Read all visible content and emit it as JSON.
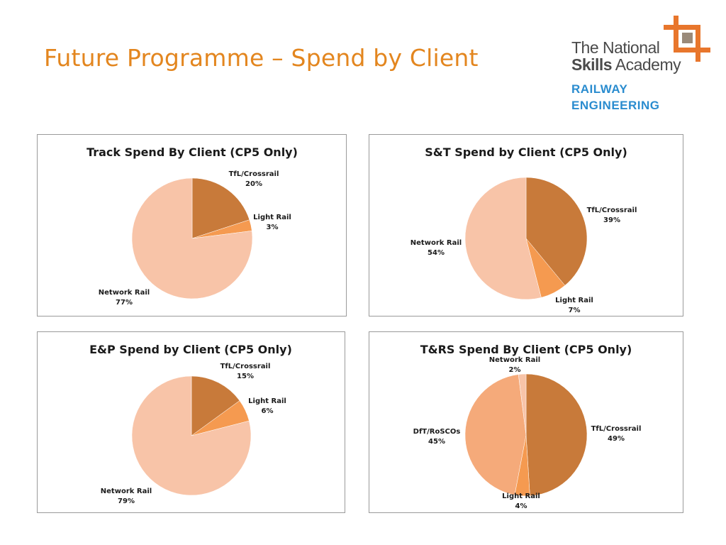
{
  "slide": {
    "title": "Future Programme – Spend by Client"
  },
  "logo": {
    "line1": "The National",
    "line2a": "Skills",
    "line2b": " Academy",
    "line3": "RAILWAY",
    "line4": "ENGINEERING",
    "colors": {
      "mark": "#e8762c",
      "inner": "#9a8a7a",
      "text": "#4a4a4a",
      "blue": "#2a8ccf"
    }
  },
  "colors": {
    "title": "#e3861f"
  },
  "chart_data": [
    {
      "type": "pie",
      "title": "Track Spend By Client (CP5 Only)",
      "categories": [
        "TfL/Crossrail",
        "Light Rail",
        "Network Rail"
      ],
      "values": [
        20,
        3,
        77
      ],
      "labels": [
        "20%",
        "3%",
        "77%"
      ],
      "colors": [
        "#c87a3a",
        "#f59a50",
        "#f8c4a8"
      ],
      "start_angle": 0
    },
    {
      "type": "pie",
      "title": "S&T Spend by Client (CP5 Only)",
      "categories": [
        "TfL/Crossrail",
        "Light Rail",
        "Network Rail"
      ],
      "values": [
        39,
        7,
        54
      ],
      "labels": [
        "39%",
        "7%",
        "54%"
      ],
      "colors": [
        "#c87a3a",
        "#f59a50",
        "#f8c4a8"
      ],
      "start_angle": 0
    },
    {
      "type": "pie",
      "title": "E&P Spend by Client (CP5 Only)",
      "categories": [
        "TfL/Crossrail",
        "Light Rail",
        "Network Rail"
      ],
      "values": [
        15,
        6,
        79
      ],
      "labels": [
        "15%",
        "6%",
        "79%"
      ],
      "colors": [
        "#c87a3a",
        "#f59a50",
        "#f8c4a8"
      ],
      "start_angle": 0
    },
    {
      "type": "pie",
      "title": "T&RS Spend By Client (CP5 Only)",
      "categories": [
        "TfL/Crossrail",
        "Light Rail",
        "DfT/RoSCOs",
        "Network Rail"
      ],
      "values": [
        49,
        4,
        45,
        2
      ],
      "labels": [
        "49%",
        "4%",
        "45%",
        "2%"
      ],
      "colors": [
        "#c87a3a",
        "#f59a50",
        "#f5aa7a",
        "#f8c4a8"
      ],
      "start_angle": 0
    }
  ]
}
